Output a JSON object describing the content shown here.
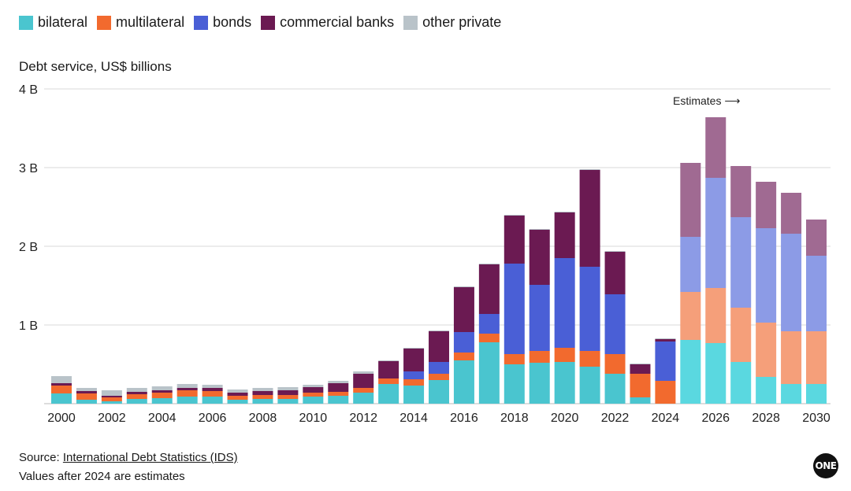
{
  "legend": [
    {
      "label": "bilateral",
      "color": "#4ac5cf"
    },
    {
      "label": "multilateral",
      "color": "#f26a2e"
    },
    {
      "label": "bonds",
      "color": "#4a5fd6"
    },
    {
      "label": "commercial banks",
      "color": "#6b1a52"
    },
    {
      "label": "other private",
      "color": "#b9c3c9"
    }
  ],
  "estimate_colors": {
    "bilateral": "#5ad8e0",
    "multilateral": "#f59f7a",
    "bonds": "#8c9be6",
    "commercial banks": "#a06a92",
    "other private": "#d4dadd"
  },
  "y_title": "Debt service, US$ billions",
  "estimates_label": "Estimates ⟶",
  "footer": {
    "source_prefix": "Source: ",
    "source_link": "International Debt Statistics (IDS)",
    "note": "Values after 2024 are estimates"
  },
  "logo_text": "ONE",
  "chart_data": {
    "type": "bar",
    "stacked": true,
    "ylabel": "Debt service, US$ billions",
    "ylim": [
      0,
      4
    ],
    "yticks": [
      "4 B",
      "3 B",
      "2 B",
      "1 B"
    ],
    "ytick_values": [
      4,
      3,
      2,
      1
    ],
    "xtick_labels": [
      "2000",
      "2002",
      "2004",
      "2006",
      "2008",
      "2010",
      "2012",
      "2014",
      "2016",
      "2018",
      "2020",
      "2022",
      "2024",
      "2026",
      "2028",
      "2030"
    ],
    "categories": [
      2000,
      2001,
      2002,
      2003,
      2004,
      2005,
      2006,
      2007,
      2008,
      2009,
      2010,
      2011,
      2012,
      2013,
      2014,
      2015,
      2016,
      2017,
      2018,
      2019,
      2020,
      2021,
      2022,
      2023,
      2024,
      2025,
      2026,
      2027,
      2028,
      2029,
      2030
    ],
    "estimate_start": 2025,
    "series": [
      {
        "name": "bilateral",
        "values": [
          0.13,
          0.05,
          0.03,
          0.06,
          0.07,
          0.09,
          0.09,
          0.05,
          0.06,
          0.06,
          0.09,
          0.1,
          0.14,
          0.25,
          0.23,
          0.3,
          0.55,
          0.78,
          0.5,
          0.52,
          0.53,
          0.47,
          0.38,
          0.08,
          0.0,
          0.81,
          0.77,
          0.53,
          0.34,
          0.25,
          0.25
        ]
      },
      {
        "name": "multilateral",
        "values": [
          0.1,
          0.08,
          0.05,
          0.06,
          0.07,
          0.08,
          0.07,
          0.05,
          0.05,
          0.05,
          0.05,
          0.05,
          0.06,
          0.07,
          0.08,
          0.08,
          0.1,
          0.11,
          0.13,
          0.15,
          0.18,
          0.2,
          0.25,
          0.3,
          0.29,
          0.61,
          0.7,
          0.69,
          0.69,
          0.67,
          0.67
        ]
      },
      {
        "name": "bonds",
        "values": [
          0.0,
          0.0,
          0.0,
          0.0,
          0.0,
          0.0,
          0.0,
          0.0,
          0.0,
          0.0,
          0.0,
          0.0,
          0.0,
          0.0,
          0.1,
          0.15,
          0.26,
          0.25,
          1.15,
          0.84,
          1.14,
          1.07,
          0.76,
          0.0,
          0.5,
          0.7,
          1.4,
          1.15,
          1.2,
          1.24,
          0.96
        ]
      },
      {
        "name": "commercial banks",
        "values": [
          0.03,
          0.03,
          0.02,
          0.03,
          0.03,
          0.03,
          0.04,
          0.04,
          0.05,
          0.06,
          0.07,
          0.11,
          0.18,
          0.22,
          0.29,
          0.39,
          0.57,
          0.63,
          0.61,
          0.7,
          0.58,
          1.23,
          0.54,
          0.12,
          0.03,
          0.94,
          0.77,
          0.65,
          0.59,
          0.52,
          0.46
        ]
      },
      {
        "name": "other private",
        "values": [
          0.09,
          0.04,
          0.07,
          0.05,
          0.05,
          0.05,
          0.04,
          0.04,
          0.04,
          0.04,
          0.03,
          0.03,
          0.03,
          0.01,
          0.01,
          0.01,
          0.01,
          0.01,
          0.01,
          0.01,
          0.01,
          0.01,
          0.01,
          0.01,
          0.01,
          0.0,
          0.0,
          0.0,
          0.0,
          0.0,
          0.0
        ]
      }
    ],
    "annotations": [
      "Estimates ⟶"
    ],
    "grid": true
  }
}
